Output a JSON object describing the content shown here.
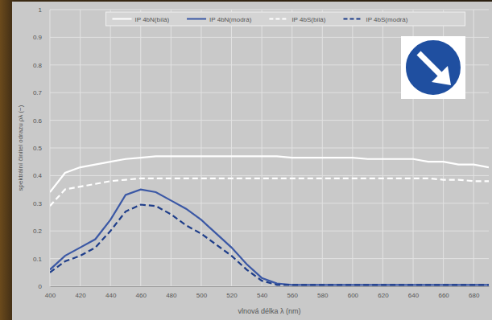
{
  "chart_data": {
    "type": "line",
    "x_label": "vlnová délka λ (nm)",
    "y_label": "spektrální činitel odrazu ρλ (−)",
    "x": [
      400,
      410,
      420,
      430,
      440,
      450,
      460,
      470,
      480,
      490,
      500,
      510,
      520,
      530,
      540,
      550,
      560,
      570,
      580,
      590,
      600,
      610,
      620,
      630,
      640,
      650,
      660,
      670,
      680,
      690
    ],
    "series": [
      {
        "name": "IP 4bN(bílá)",
        "color": "#ffffff",
        "line_style": "solid",
        "values": [
          0.34,
          0.41,
          0.43,
          0.44,
          0.45,
          0.46,
          0.465,
          0.47,
          0.47,
          0.47,
          0.47,
          0.47,
          0.47,
          0.47,
          0.47,
          0.47,
          0.465,
          0.465,
          0.465,
          0.465,
          0.465,
          0.46,
          0.46,
          0.46,
          0.46,
          0.45,
          0.45,
          0.44,
          0.44,
          0.43
        ]
      },
      {
        "name": "IP 4bN(modrá)",
        "color": "#3b58a5",
        "line_style": "solid",
        "values": [
          0.06,
          0.11,
          0.14,
          0.17,
          0.24,
          0.33,
          0.35,
          0.34,
          0.31,
          0.28,
          0.24,
          0.19,
          0.14,
          0.08,
          0.03,
          0.01,
          0.005,
          0.005,
          0.005,
          0.005,
          0.005,
          0.005,
          0.005,
          0.005,
          0.005,
          0.005,
          0.005,
          0.005,
          0.005,
          0.005
        ]
      },
      {
        "name": "IP 4bS(bílá)",
        "color": "#ffffff",
        "line_style": "dashed",
        "values": [
          0.29,
          0.35,
          0.36,
          0.37,
          0.38,
          0.385,
          0.39,
          0.39,
          0.39,
          0.39,
          0.39,
          0.39,
          0.39,
          0.39,
          0.39,
          0.39,
          0.39,
          0.39,
          0.39,
          0.39,
          0.39,
          0.39,
          0.39,
          0.39,
          0.39,
          0.39,
          0.385,
          0.385,
          0.38,
          0.38
        ]
      },
      {
        "name": "IP 4bS(modrá)",
        "color": "#1f3e8a",
        "line_style": "dashed",
        "values": [
          0.05,
          0.09,
          0.11,
          0.14,
          0.2,
          0.27,
          0.295,
          0.29,
          0.26,
          0.22,
          0.19,
          0.15,
          0.11,
          0.06,
          0.02,
          0.005,
          0.005,
          0.005,
          0.005,
          0.005,
          0.005,
          0.005,
          0.005,
          0.005,
          0.005,
          0.005,
          0.005,
          0.005,
          0.005,
          0.005
        ]
      }
    ],
    "xlim": [
      400,
      690
    ],
    "xticks": [
      400,
      420,
      440,
      460,
      480,
      500,
      520,
      540,
      560,
      580,
      600,
      620,
      640,
      660,
      680
    ],
    "ylim": [
      0,
      1
    ],
    "yticks": [
      0,
      0.1,
      0.2,
      0.3,
      0.4,
      0.5,
      0.6,
      0.7,
      0.8,
      0.9,
      1
    ],
    "grid": true,
    "legend": "top"
  }
}
